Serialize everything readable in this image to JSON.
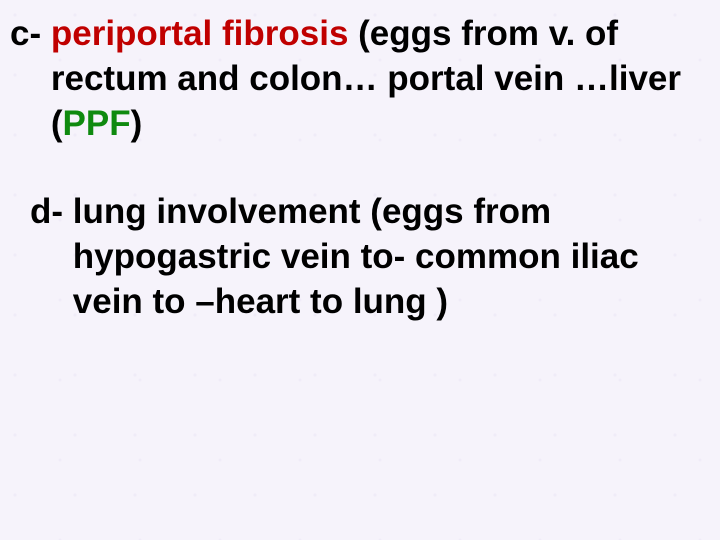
{
  "colors": {
    "background": "#f6f3fb",
    "text_black": "#000000",
    "text_red": "#c00000",
    "text_green": "#0f8a0f"
  },
  "typography": {
    "font_family": "Comic Sans MS",
    "font_size_pt": 26,
    "font_weight": "bold",
    "line_height": 1.28
  },
  "items": {
    "c": {
      "label": "c- ",
      "segments": {
        "s0": "periportal fibrosis",
        "s1": " (eggs from v. of rectum and colon… portal vein …liver (",
        "s2": "PPF",
        "s3": ")"
      }
    },
    "d": {
      "label": "d- ",
      "segments": {
        "s0": "lung involvement (eggs from hypogastric vein to- common iliac vein to –heart to lung )"
      }
    }
  }
}
